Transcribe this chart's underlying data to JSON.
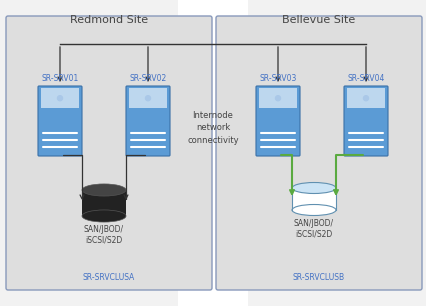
{
  "outer_bg": "#f2f2f2",
  "site_box_color": "#dedede",
  "site_border_color": "#8899bb",
  "server_color_dark": "#5b9bd5",
  "server_color_light": "#bdd7ee",
  "disk_black_body": "#222222",
  "disk_black_top": "#444444",
  "disk_white_body": "#ffffff",
  "disk_white_top": "#cce4f5",
  "disk_white_rim": "#6090b0",
  "green_arrow": "#5aaa40",
  "black_arrow": "#333333",
  "text_blue": "#4472c4",
  "text_dark": "#444444",
  "title_left": "Redmond Site",
  "title_right": "Bellevue Site",
  "label_srv01": "SR-SRV01",
  "label_srv02": "SR-SRV02",
  "label_srv03": "SR-SRV03",
  "label_srv04": "SR-SRV04",
  "label_cluster_a": "SR-SRVCLUSА",
  "label_cluster_b": "SR-SRVCLUSB",
  "label_disk_left": "SAN/JBOD/\niSCSI/S2D",
  "label_disk_right": "SAN/JBOD/\niSCSI/S2D",
  "label_internode": "Internode\nnetwork\nconnectivity",
  "figsize": [
    4.27,
    3.06
  ],
  "dpi": 100
}
